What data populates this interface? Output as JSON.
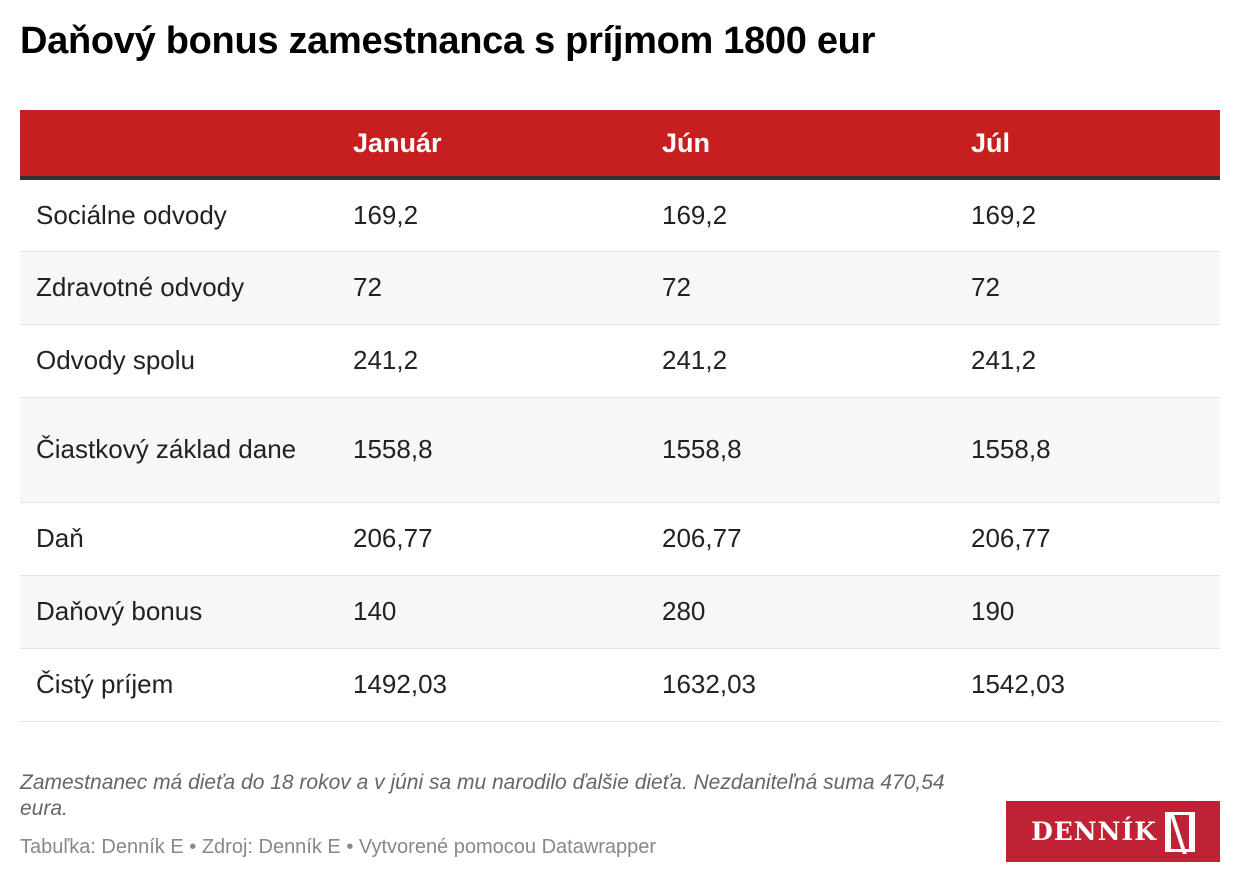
{
  "title": "Daňový bonus zamestnanca s príjmom 1800 eur",
  "columns": [
    "",
    "Január",
    "Jún",
    "Júl"
  ],
  "rows": [
    {
      "label": "Sociálne odvody",
      "values": [
        "169,2",
        "169,2",
        "169,2"
      ]
    },
    {
      "label": "Zdravotné odvody",
      "values": [
        "72",
        "72",
        "72"
      ]
    },
    {
      "label": "Odvody spolu",
      "values": [
        "241,2",
        "241,2",
        "241,2"
      ]
    },
    {
      "label": "Čiastkový základ dane",
      "values": [
        "1558,8",
        "1558,8",
        "1558,8"
      ]
    },
    {
      "label": "Daň",
      "values": [
        "206,77",
        "206,77",
        "206,77"
      ]
    },
    {
      "label": "Daňový bonus",
      "values": [
        "140",
        "280",
        "190"
      ]
    },
    {
      "label": "Čistý príjem",
      "values": [
        "1492,03",
        "1632,03",
        "1542,03"
      ]
    }
  ],
  "note": "Zamestnanec má dieťa do 18 rokov a v júni sa mu narodilo ďalšie dieťa. Nezdaniteľná suma 470,54 eura.",
  "source": "Tabuľka: Denník E • Zdroj: Denník E • Vytvorené pomocou Datawrapper",
  "logo": {
    "text": "DENNÍK",
    "mark": "N"
  },
  "colors": {
    "header": "#c71e1f",
    "logo": "#c02235"
  }
}
